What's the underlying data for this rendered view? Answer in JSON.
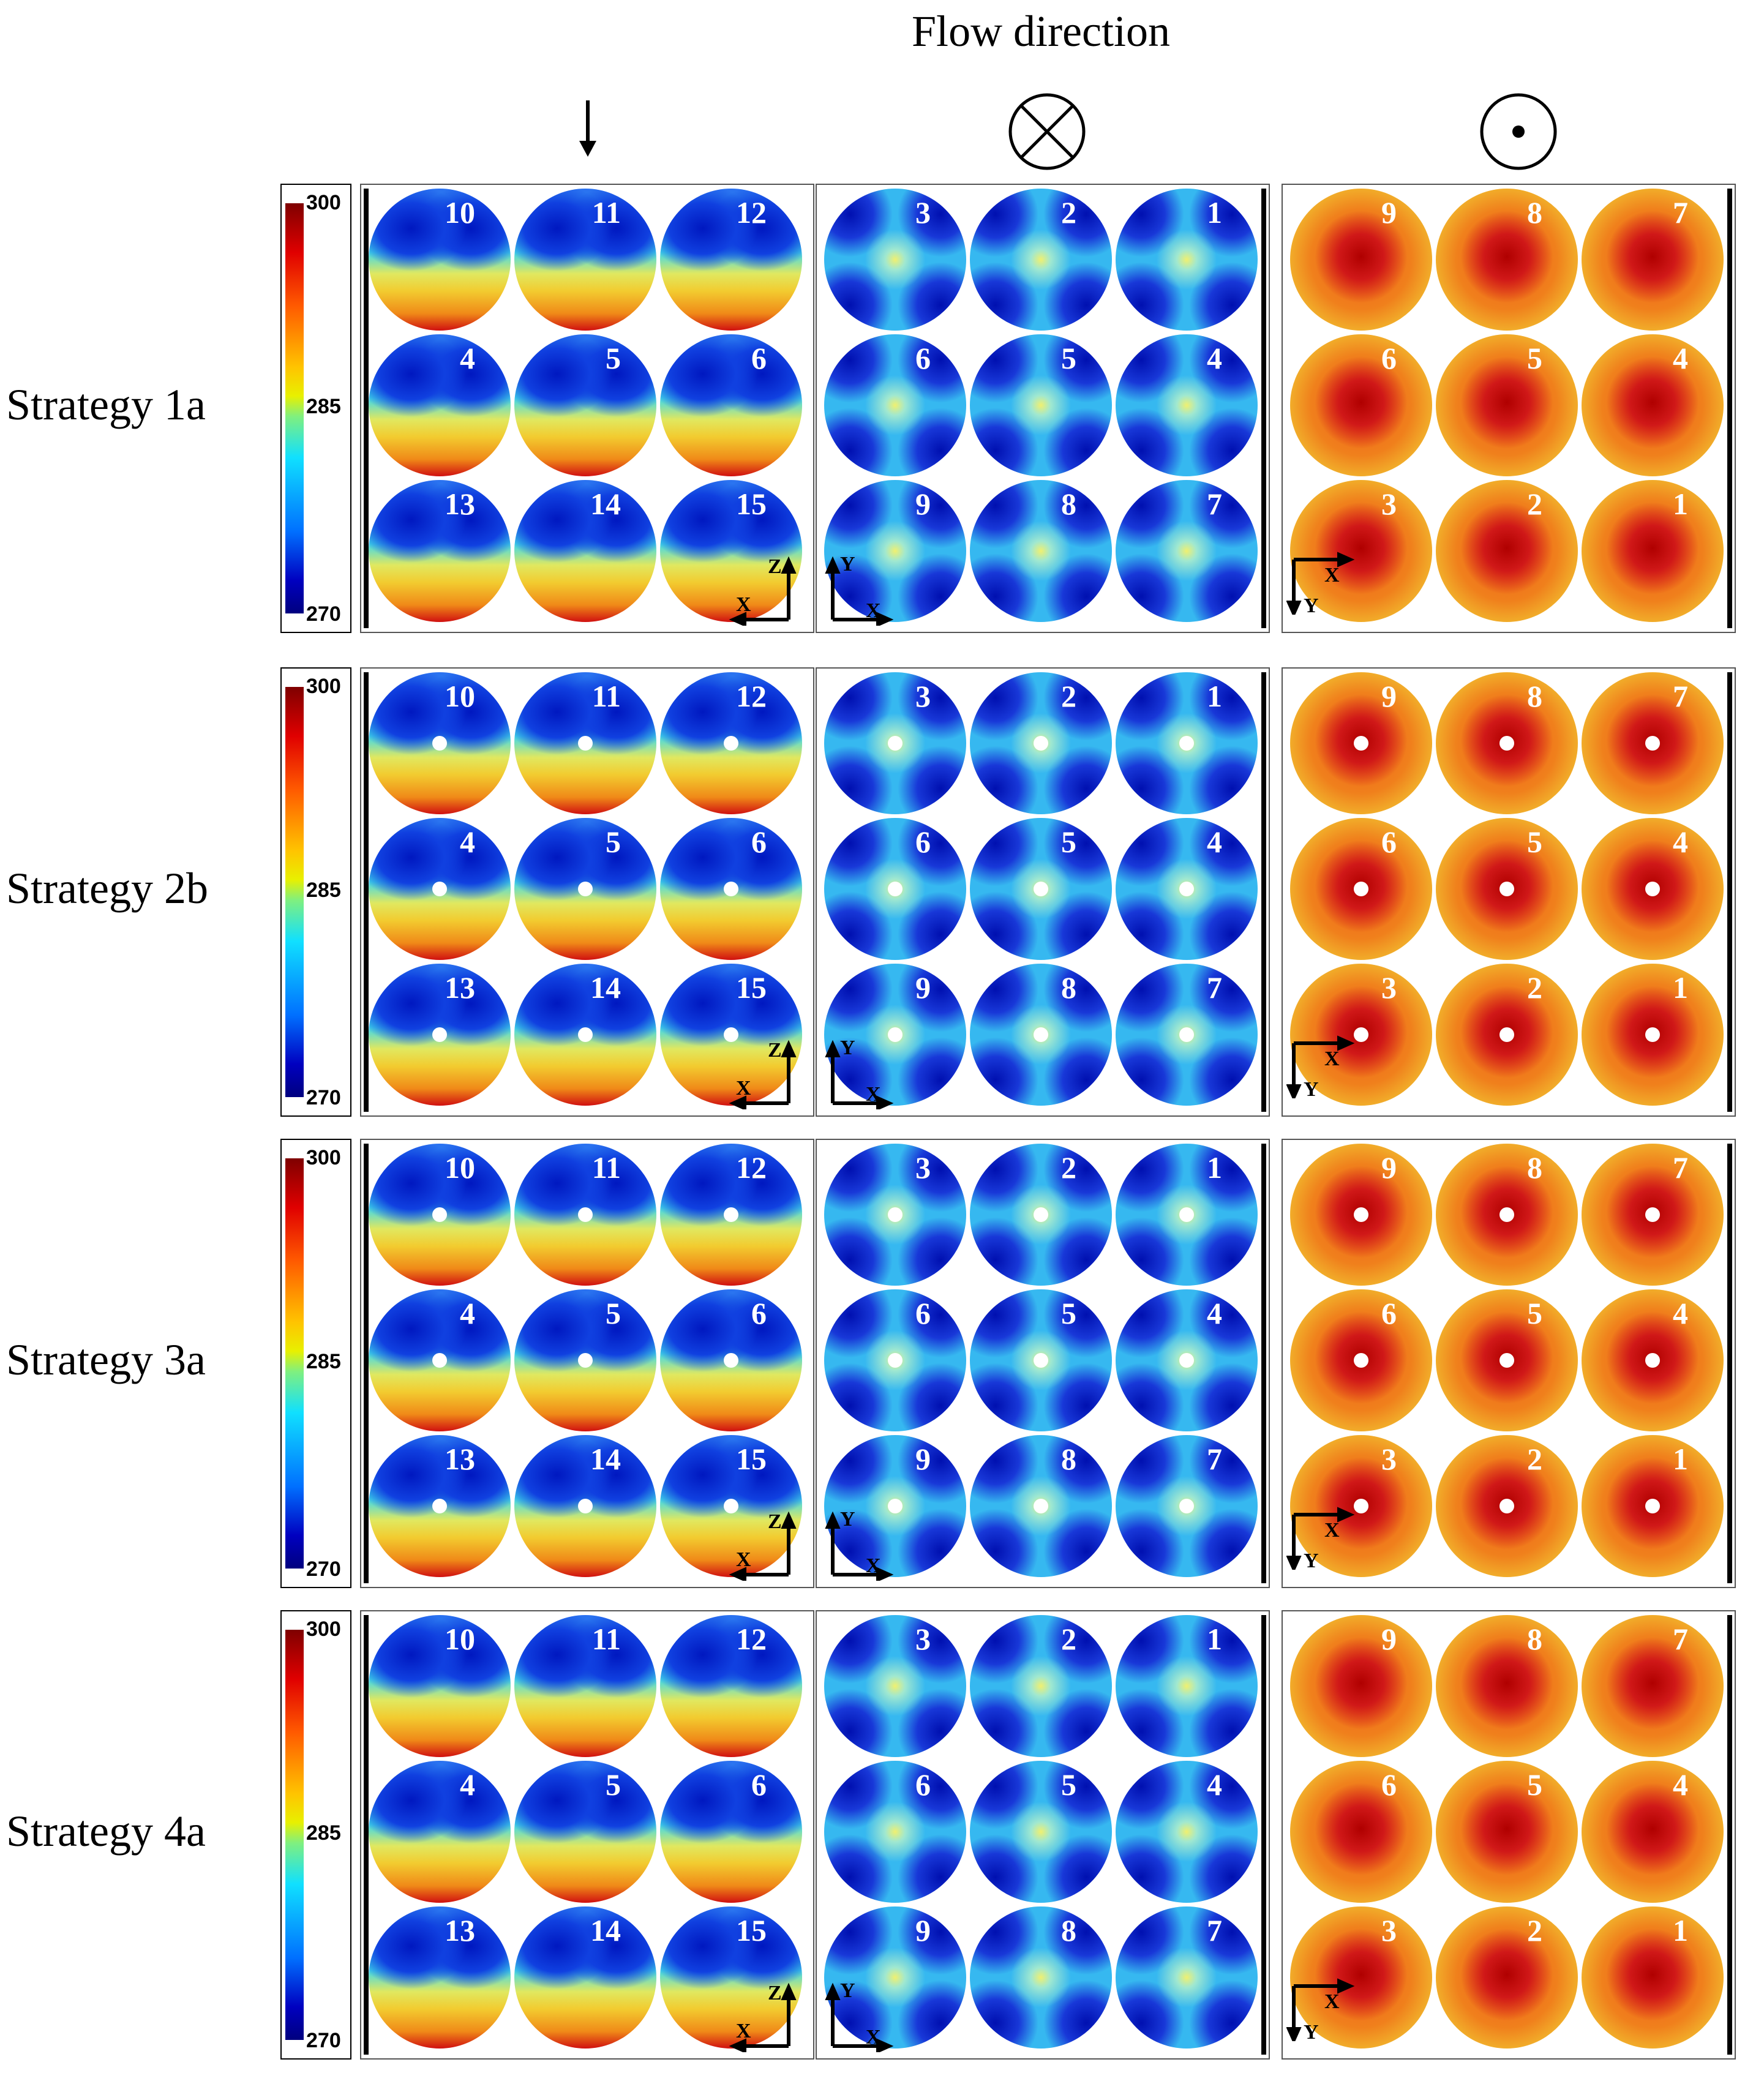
{
  "header": {
    "flow_direction": "Flow direction",
    "symbols": [
      "arrow-down-icon",
      "circle-cross-icon",
      "circle-dot-icon"
    ]
  },
  "colorbar": {
    "max": "300",
    "mid": "285",
    "min": "270"
  },
  "strategies": [
    {
      "label": "Strategy 1a",
      "markers": false
    },
    {
      "label": "Strategy 2b",
      "markers": true
    },
    {
      "label": "Strategy 3a",
      "markers": true
    },
    {
      "label": "Strategy 4a",
      "markers": false
    }
  ],
  "panels": [
    {
      "numbers": [
        "10",
        "11",
        "12",
        "4",
        "5",
        "6",
        "13",
        "14",
        "15"
      ],
      "axes": [
        "Z",
        "X"
      ]
    },
    {
      "numbers": [
        "3",
        "2",
        "1",
        "6",
        "5",
        "4",
        "9",
        "8",
        "7"
      ],
      "axes": [
        "Y",
        "X"
      ]
    },
    {
      "numbers": [
        "9",
        "8",
        "7",
        "6",
        "5",
        "4",
        "3",
        "2",
        "1"
      ],
      "axes": [
        "X",
        "Y"
      ]
    }
  ]
}
